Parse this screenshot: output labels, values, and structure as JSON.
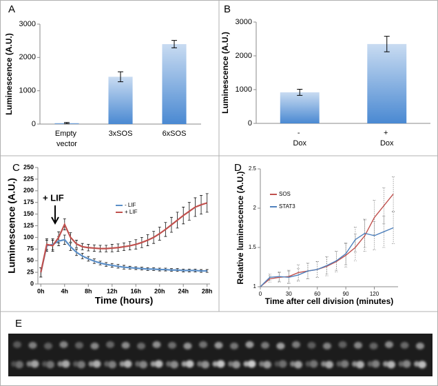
{
  "chart_data": [
    {
      "type": "bar",
      "panel": "A",
      "ylabel": "Luminescence (A.U.)",
      "categories": [
        "Empty vector",
        "3xSOS",
        "6xSOS"
      ],
      "values": [
        30,
        1420,
        2400
      ],
      "errors": [
        20,
        150,
        110
      ],
      "color": "#4a89d2",
      "ylim": [
        0,
        3000
      ],
      "yticks": [
        0,
        1000,
        2000,
        3000
      ]
    },
    {
      "type": "bar",
      "panel": "B",
      "ylabel": "Luminescence (A.U.)",
      "categories": [
        "- Dox",
        "+ Dox"
      ],
      "values": [
        920,
        2350
      ],
      "errors": [
        90,
        230
      ],
      "color": "#4a89d2",
      "ylim": [
        0,
        3000
      ],
      "yticks": [
        0,
        1000,
        2000,
        3000
      ]
    },
    {
      "type": "line",
      "panel": "C",
      "ylabel": "Luminescence (A.U.)",
      "xlabel": "Time (hours)",
      "annotation": "+ LIF",
      "x": [
        0,
        1,
        2,
        3,
        4,
        5,
        6,
        7,
        8,
        9,
        10,
        11,
        12,
        13,
        14,
        15,
        16,
        17,
        18,
        19,
        20,
        21,
        22,
        23,
        24,
        25,
        26,
        27,
        28
      ],
      "series": [
        {
          "name": "- LIF",
          "color": "#5b8fc8",
          "values": [
            25,
            82,
            85,
            92,
            95,
            80,
            68,
            60,
            54,
            49,
            45,
            42,
            40,
            38,
            36,
            35,
            34,
            33,
            32,
            32,
            31,
            31,
            30,
            30,
            29,
            29,
            29,
            28,
            28
          ],
          "errors": [
            10,
            12,
            12,
            10,
            10,
            8,
            7,
            6,
            5,
            5,
            4,
            4,
            4,
            4,
            4,
            3,
            3,
            3,
            3,
            3,
            3,
            3,
            3,
            3,
            3,
            3,
            3,
            3,
            3
          ]
        },
        {
          "name": "+ LIF",
          "color": "#c0504d",
          "values": [
            25,
            85,
            82,
            100,
            128,
            100,
            86,
            80,
            78,
            77,
            76,
            76,
            77,
            78,
            80,
            82,
            85,
            89,
            94,
            100,
            108,
            117,
            127,
            137,
            147,
            156,
            165,
            170,
            174
          ],
          "errors": [
            10,
            12,
            12,
            12,
            12,
            10,
            8,
            7,
            7,
            7,
            7,
            7,
            8,
            8,
            8,
            9,
            10,
            11,
            12,
            13,
            14,
            15,
            16,
            17,
            18,
            19,
            20,
            20,
            20
          ]
        }
      ],
      "xlim": [
        -0.5,
        28.5
      ],
      "ylim": [
        0,
        250
      ],
      "xticks": [
        {
          "value": 0,
          "label": "0h"
        },
        {
          "value": 4,
          "label": "4h"
        },
        {
          "value": 8,
          "label": "8h"
        },
        {
          "value": 12,
          "label": "12h"
        },
        {
          "value": 16,
          "label": "16h"
        },
        {
          "value": 20,
          "label": "20h"
        },
        {
          "value": 24,
          "label": "24h"
        },
        {
          "value": 28,
          "label": "28h"
        }
      ],
      "yticks": [
        0,
        25,
        50,
        75,
        100,
        125,
        150,
        175,
        200,
        225,
        250
      ],
      "legend": "upper center"
    },
    {
      "type": "line",
      "panel": "D",
      "ylabel": "Relative luminescence (A.U.)",
      "xlabel": "Time after cell division (minutes)",
      "x": [
        0,
        10,
        20,
        30,
        40,
        50,
        60,
        70,
        80,
        90,
        100,
        110,
        120,
        130,
        140
      ],
      "series": [
        {
          "name": "SOS",
          "color": "#c0504d",
          "values": [
            1.0,
            1.1,
            1.12,
            1.13,
            1.18,
            1.2,
            1.22,
            1.26,
            1.32,
            1.4,
            1.5,
            1.65,
            1.88,
            2.03,
            2.18
          ],
          "errors": [
            0,
            0.04,
            0.06,
            0.08,
            0.1,
            0.1,
            0.1,
            0.12,
            0.13,
            0.15,
            0.17,
            0.2,
            0.22,
            0.23,
            0.22
          ]
        },
        {
          "name": "STAT3",
          "color": "#4f81bd",
          "values": [
            1.0,
            1.12,
            1.13,
            1.12,
            1.15,
            1.2,
            1.22,
            1.27,
            1.33,
            1.42,
            1.6,
            1.68,
            1.65,
            1.7,
            1.75
          ],
          "errors": [
            0,
            0.04,
            0.06,
            0.08,
            0.08,
            0.1,
            0.1,
            0.11,
            0.12,
            0.14,
            0.16,
            0.18,
            0.18,
            0.2,
            0.2
          ]
        }
      ],
      "xlim": [
        0,
        145
      ],
      "ylim": [
        1,
        2.5
      ],
      "xticks": [
        0,
        30,
        60,
        90,
        120
      ],
      "yticks": [
        1,
        1.5,
        2,
        2.5
      ],
      "legend": "upper left"
    }
  ],
  "image_panel": {
    "label": "E"
  }
}
